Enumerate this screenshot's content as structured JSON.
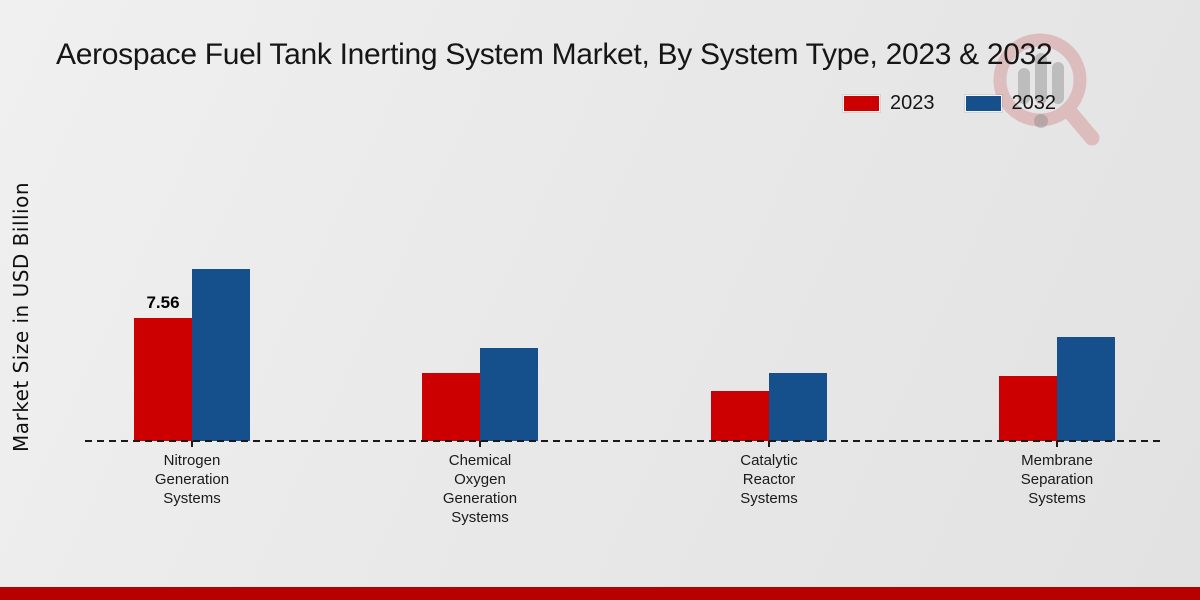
{
  "page": {
    "footer_bar_color": "#b70100"
  },
  "legend": {
    "items": [
      {
        "label": "2023",
        "color": "#cc0000"
      },
      {
        "label": "2032",
        "color": "#15508c"
      }
    ]
  },
  "watermark": {
    "name": "market-research-magnifier-logo",
    "circle_color": "#cf8181",
    "bars_color": "#8d8d8d"
  },
  "chart_data": {
    "type": "bar",
    "title": "Aerospace Fuel Tank Inerting System Market, By System Type, 2023 & 2032",
    "xlabel": "",
    "ylabel": "Market Size in USD Billion",
    "categories": [
      "Nitrogen Generation Systems",
      "Chemical Oxygen Generation Systems",
      "Catalytic Reactor Systems",
      "Membrane Separation Systems"
    ],
    "series": [
      {
        "name": "2023",
        "color": "#cc0000",
        "values": [
          7.56,
          4.2,
          3.1,
          4.0
        ]
      },
      {
        "name": "2032",
        "color": "#15508c",
        "values": [
          10.6,
          5.7,
          4.2,
          6.4
        ]
      }
    ],
    "value_labels": [
      {
        "series": "2023",
        "category": "Nitrogen Generation Systems",
        "text": "7.56"
      }
    ],
    "ylim": [
      0,
      11
    ],
    "grid": false,
    "legend_position": "top-right",
    "baseline_style": "dashed"
  }
}
